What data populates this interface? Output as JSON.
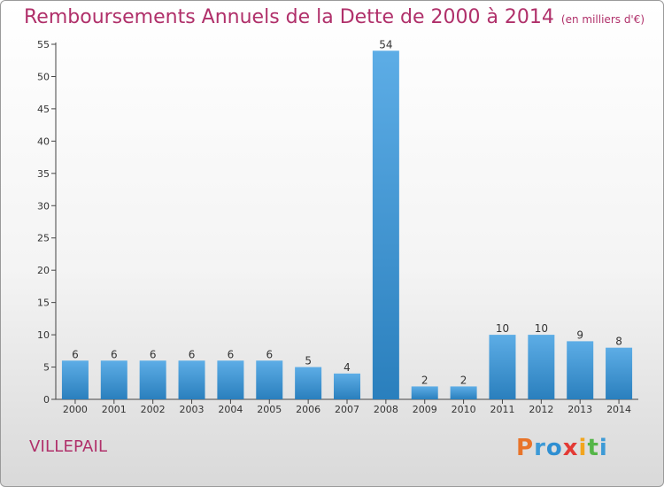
{
  "header": {
    "title": "Remboursements Annuels de la Dette de 2000 à 2014",
    "unit": "(en milliers d'€)"
  },
  "footer": {
    "place": "VILLEPAIL",
    "logo": [
      "P",
      "r",
      "o",
      "x",
      "i",
      "t",
      "i"
    ]
  },
  "colors": {
    "title": "#b0306a",
    "bar_light": "#5dade6",
    "bar_dark": "#2a7fbd",
    "logo": [
      "#e8742a",
      "#3d9ad6",
      "#2f8fd2",
      "#e33a35",
      "#f2a51e",
      "#55b648",
      "#3d9ad6"
    ]
  },
  "chart_data": {
    "type": "bar",
    "title": "Remboursements Annuels de la Dette de 2000 à 2014",
    "subtitle": "(en milliers d'€)",
    "xlabel": "",
    "ylabel": "",
    "categories": [
      "2000",
      "2001",
      "2002",
      "2003",
      "2004",
      "2005",
      "2006",
      "2007",
      "2008",
      "2009",
      "2010",
      "2011",
      "2012",
      "2013",
      "2014"
    ],
    "values": [
      6,
      6,
      6,
      6,
      6,
      6,
      5,
      4,
      54,
      2,
      2,
      10,
      10,
      9,
      8
    ],
    "ylim": [
      0,
      55
    ],
    "yticks": [
      0,
      5,
      10,
      15,
      20,
      25,
      30,
      35,
      40,
      45,
      50,
      55
    ],
    "grid": false,
    "data_labels": true
  }
}
